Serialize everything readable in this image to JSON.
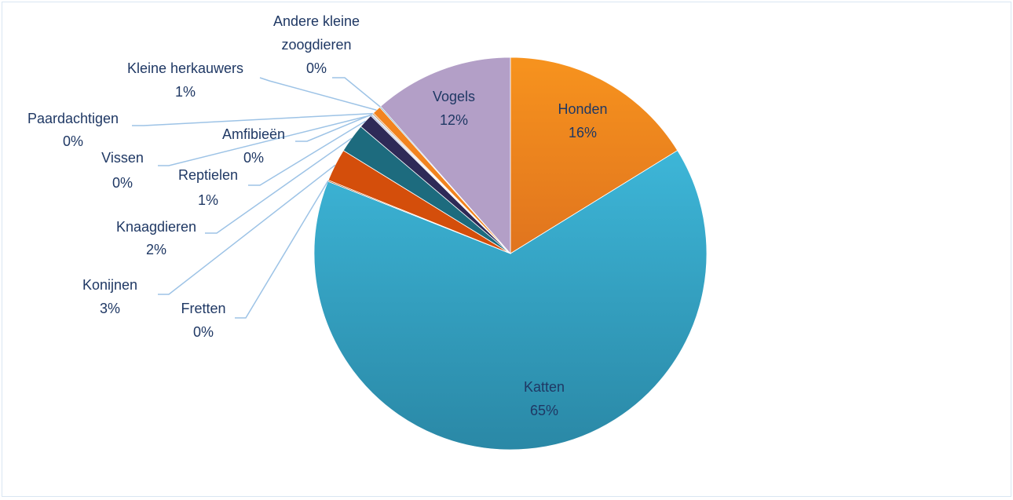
{
  "chart_data": {
    "type": "pie",
    "title": "",
    "colors": {
      "Honden": "#f7931e",
      "Katten": "#3ab1d3",
      "Fretten": "#a84400",
      "Konijnen": "#d44e0b",
      "Knaagdieren": "#1d6b7e",
      "Reptielen": "#2e2a57",
      "Vissen": "#7a7fbf",
      "Amfibieën": "#b0d5e3",
      "Paardachtigen": "#c96a1a",
      "Kleine herkauwers": "#f2841f",
      "Andere kleine zoogdieren": "#6a9fb5",
      "Vogels": "#b39fc7",
      "leader": "#9dc3e6",
      "text": "#1f3864"
    },
    "slices": [
      {
        "name": "Honden",
        "label": "16%",
        "value": 16.2,
        "placement": "inside"
      },
      {
        "name": "Katten",
        "label": "65%",
        "value": 64.8,
        "placement": "inside"
      },
      {
        "name": "Fretten",
        "label": "0%",
        "value": 0.1,
        "placement": "outside"
      },
      {
        "name": "Konijnen",
        "label": "3%",
        "value": 2.7,
        "placement": "outside"
      },
      {
        "name": "Knaagdieren",
        "label": "2%",
        "value": 2.4,
        "placement": "outside"
      },
      {
        "name": "Reptielen",
        "label": "1%",
        "value": 1.2,
        "placement": "outside"
      },
      {
        "name": "Vissen",
        "label": "0%",
        "value": 0.1,
        "placement": "outside"
      },
      {
        "name": "Amfibieën",
        "label": "0%",
        "value": 0.1,
        "placement": "outside"
      },
      {
        "name": "Paardachtigen",
        "label": "0%",
        "value": 0.1,
        "placement": "outside"
      },
      {
        "name": "Kleine herkauwers",
        "label": "1%",
        "value": 0.7,
        "placement": "outside"
      },
      {
        "name": "Andere kleine zoogdieren",
        "label": "0%",
        "value": 0.1,
        "placement": "outside"
      },
      {
        "name": "Vogels",
        "label": "12%",
        "value": 11.5,
        "placement": "inside"
      }
    ]
  }
}
